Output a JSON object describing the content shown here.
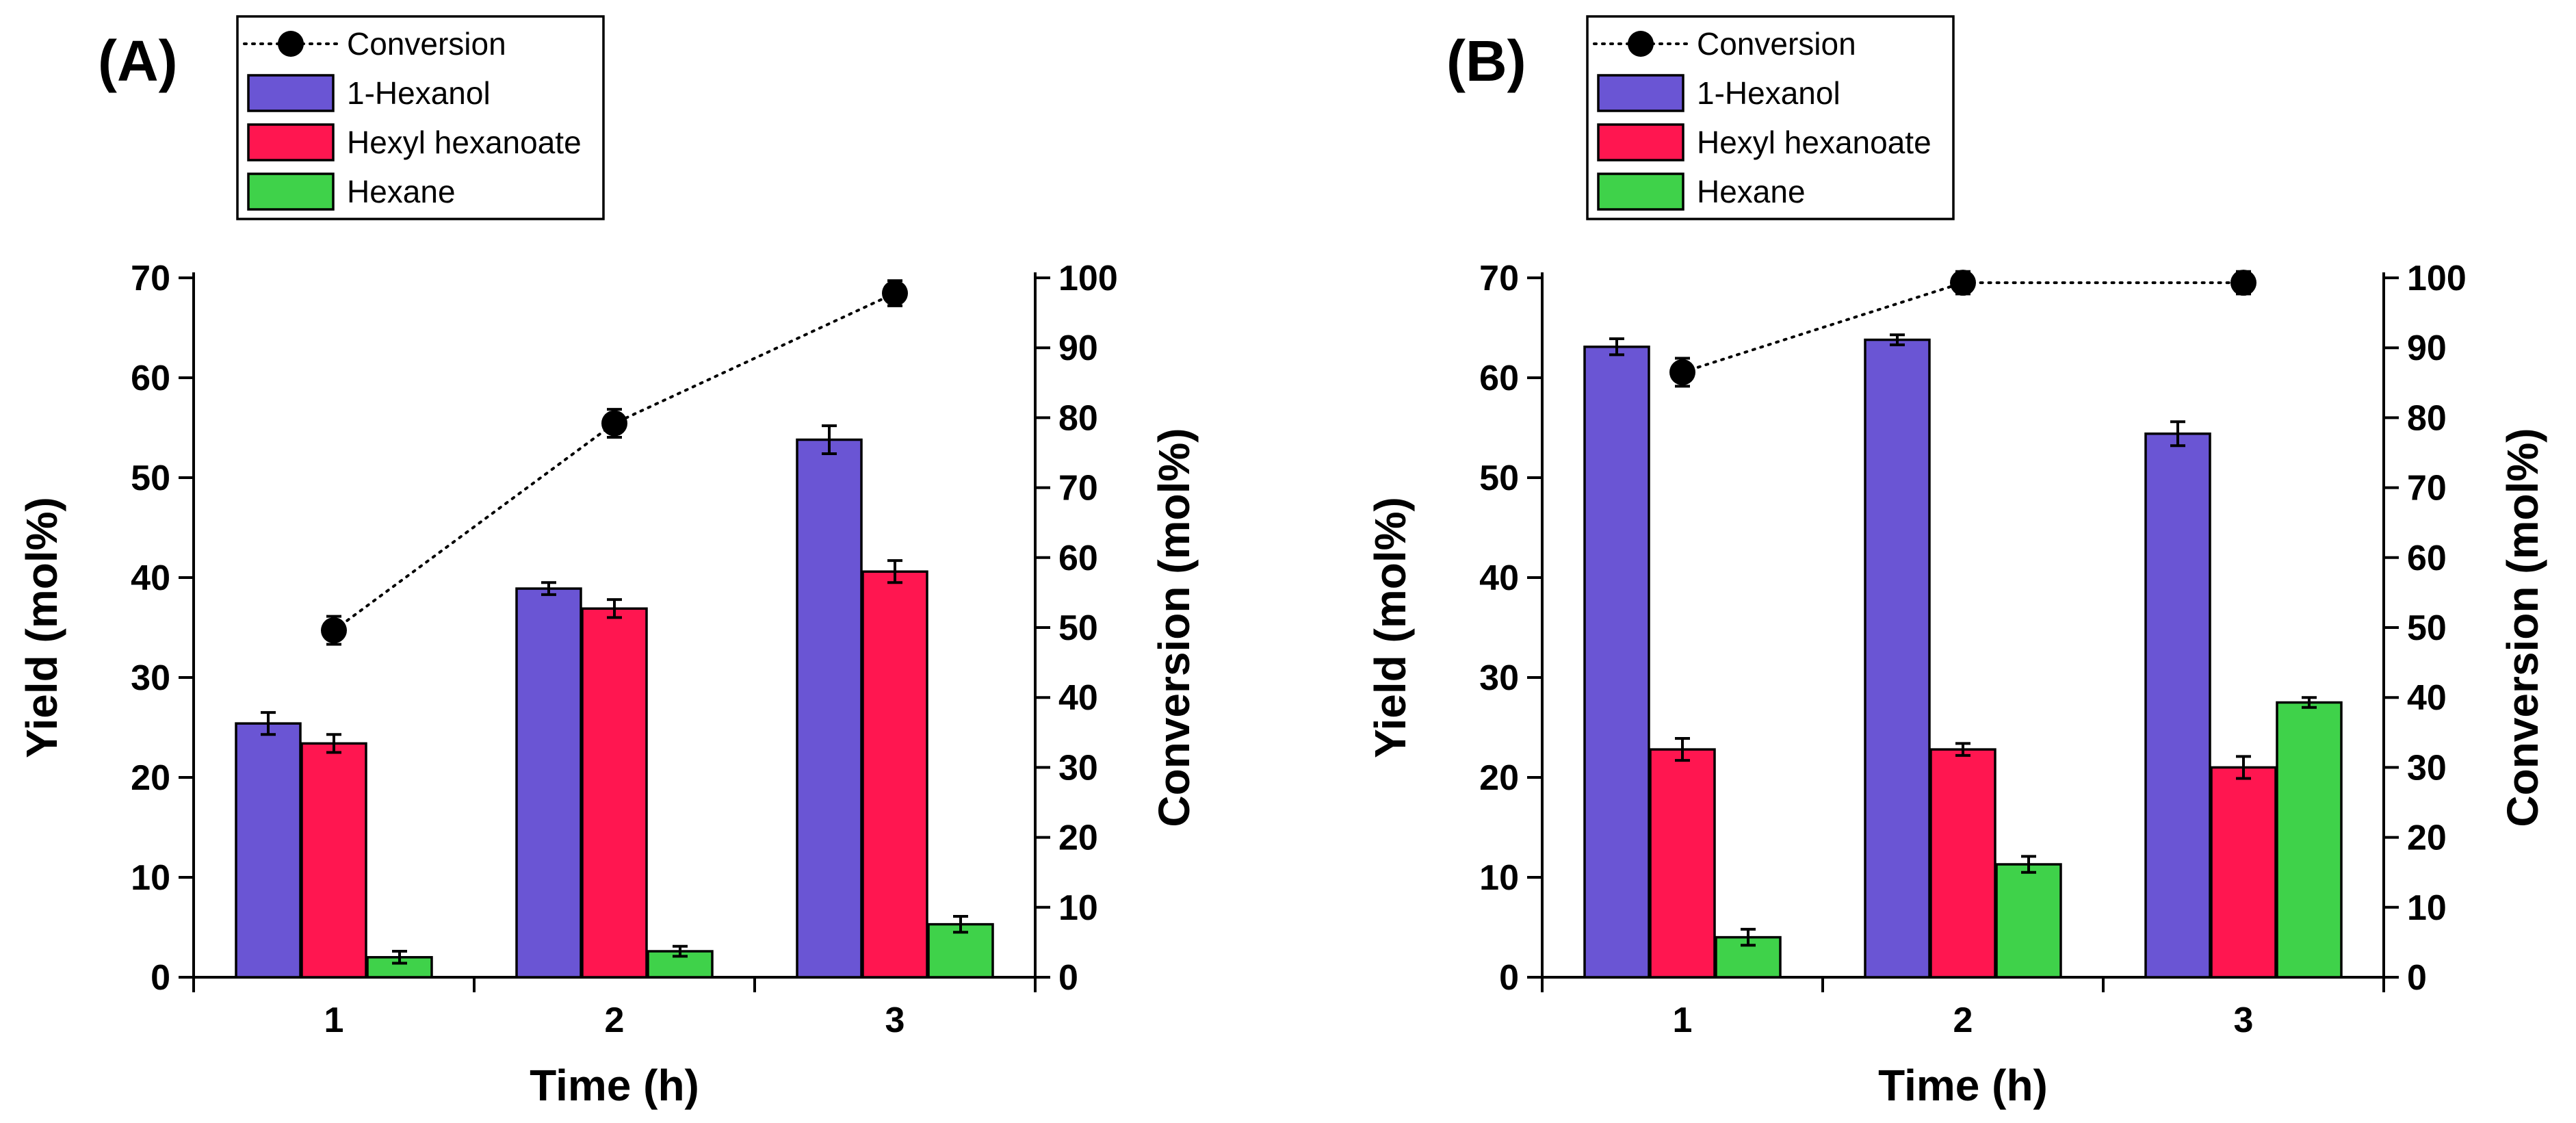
{
  "colors": {
    "hexanol": "#6a55d4",
    "hexyl_hexanoate": "#ff1650",
    "hexane": "#3fd24a",
    "conversion": "#000000"
  },
  "legend": {
    "conversion": "Conversion",
    "hexanol": "1-Hexanol",
    "hexyl_hexanoate": "Hexyl hexanoate",
    "hexane": "Hexane"
  },
  "chart_data": [
    {
      "panel": "(A)",
      "type": "bar",
      "xlabel": "Time (h)",
      "ylabel": "Yield (mol%)",
      "y2label": "Conversion (mol%)",
      "ylim": [
        0,
        70
      ],
      "y2lim": [
        0,
        100
      ],
      "yticks": [
        0,
        10,
        20,
        30,
        40,
        50,
        60,
        70
      ],
      "y2ticks": [
        0,
        10,
        20,
        30,
        40,
        50,
        60,
        70,
        80,
        90,
        100
      ],
      "categories": [
        "1",
        "2",
        "3"
      ],
      "series": [
        {
          "name": "1-Hexanol",
          "axis": "left",
          "values": [
            25.4,
            38.9,
            53.8
          ],
          "errors": [
            1.1,
            0.6,
            1.4
          ]
        },
        {
          "name": "Hexyl hexanoate",
          "axis": "left",
          "values": [
            23.4,
            36.9,
            40.6
          ],
          "errors": [
            0.9,
            0.9,
            1.1
          ]
        },
        {
          "name": "Hexane",
          "axis": "left",
          "values": [
            2.0,
            2.6,
            5.3
          ],
          "errors": [
            0.6,
            0.5,
            0.8
          ]
        },
        {
          "name": "Conversion",
          "axis": "right",
          "kind": "line",
          "values": [
            49.6,
            79.2,
            97.8
          ],
          "errors": [
            2.0,
            2.0,
            1.8
          ]
        }
      ]
    },
    {
      "panel": "(B)",
      "type": "bar",
      "xlabel": "Time (h)",
      "ylabel": "Yield (mol%)",
      "y2label": "Conversion (mol%)",
      "ylim": [
        0,
        70
      ],
      "y2lim": [
        0,
        100
      ],
      "yticks": [
        0,
        10,
        20,
        30,
        40,
        50,
        60,
        70
      ],
      "y2ticks": [
        0,
        10,
        20,
        30,
        40,
        50,
        60,
        70,
        80,
        90,
        100
      ],
      "categories": [
        "1",
        "2",
        "3"
      ],
      "series": [
        {
          "name": "1-Hexanol",
          "axis": "left",
          "values": [
            63.1,
            63.8,
            54.4
          ],
          "errors": [
            0.8,
            0.5,
            1.2
          ]
        },
        {
          "name": "Hexyl hexanoate",
          "axis": "left",
          "values": [
            22.8,
            22.8,
            21.0
          ],
          "errors": [
            1.1,
            0.6,
            1.1
          ]
        },
        {
          "name": "Hexane",
          "axis": "left",
          "values": [
            4.0,
            11.3,
            27.5
          ],
          "errors": [
            0.8,
            0.8,
            0.5
          ]
        },
        {
          "name": "Conversion",
          "axis": "right",
          "kind": "line",
          "values": [
            86.5,
            99.3,
            99.3
          ],
          "errors": [
            2.0,
            1.6,
            1.6
          ]
        }
      ]
    }
  ]
}
